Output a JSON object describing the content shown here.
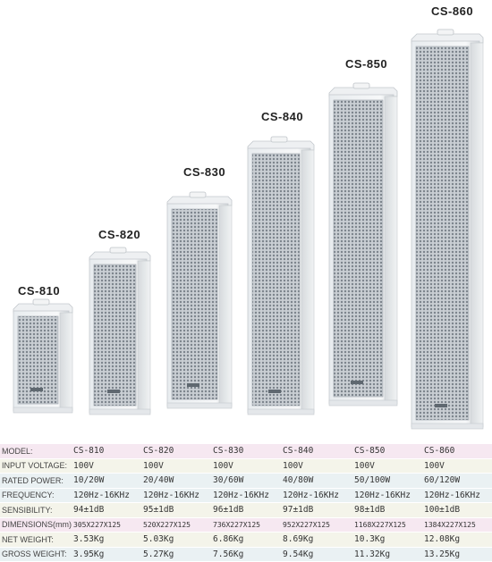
{
  "models": [
    {
      "name": "CS-810"
    },
    {
      "name": "CS-820"
    },
    {
      "name": "CS-830"
    },
    {
      "name": "CS-840"
    },
    {
      "name": "CS-850"
    },
    {
      "name": "CS-860"
    }
  ],
  "specs": {
    "rows": [
      {
        "label": "MODEL:",
        "values": [
          "CS-810",
          "CS-820",
          "CS-830",
          "CS-840",
          "CS-850",
          "CS-860"
        ]
      },
      {
        "label": "INPUT VOLTAGE:",
        "values": [
          "100V",
          "100V",
          "100V",
          "100V",
          "100V",
          "100V"
        ]
      },
      {
        "label": "RATED POWER:",
        "values": [
          "10/20W",
          "20/40W",
          "30/60W",
          "40/80W",
          "50/100W",
          "60/120W"
        ]
      },
      {
        "label": "FREQUENCY:",
        "values": [
          "120Hz-16KHz",
          "120Hz-16KHz",
          "120Hz-16KHz",
          "120Hz-16KHz",
          "120Hz-16KHz",
          "120Hz-16KHz"
        ]
      },
      {
        "label": "SENSIBILITY:",
        "values": [
          "94±1dB",
          "95±1dB",
          "96±1dB",
          "97±1dB",
          "98±1dB",
          "100±1dB"
        ]
      },
      {
        "label": "DIMENSIONS(mm):",
        "values": [
          "305X227X125",
          "520X227X125",
          "736X227X125",
          "952X227X125",
          "1168X227X125",
          "1384X227X125"
        ]
      },
      {
        "label": "NET WEIGHT:",
        "values": [
          "3.53Kg",
          "5.03Kg",
          "6.86Kg",
          "8.69Kg",
          "10.3Kg",
          "12.08Kg"
        ]
      },
      {
        "label": "GROSS WEIGHT:",
        "values": [
          "3.95Kg",
          "5.27Kg",
          "7.56Kg",
          "9.54Kg",
          "11.32Kg",
          "13.25Kg"
        ]
      }
    ]
  }
}
